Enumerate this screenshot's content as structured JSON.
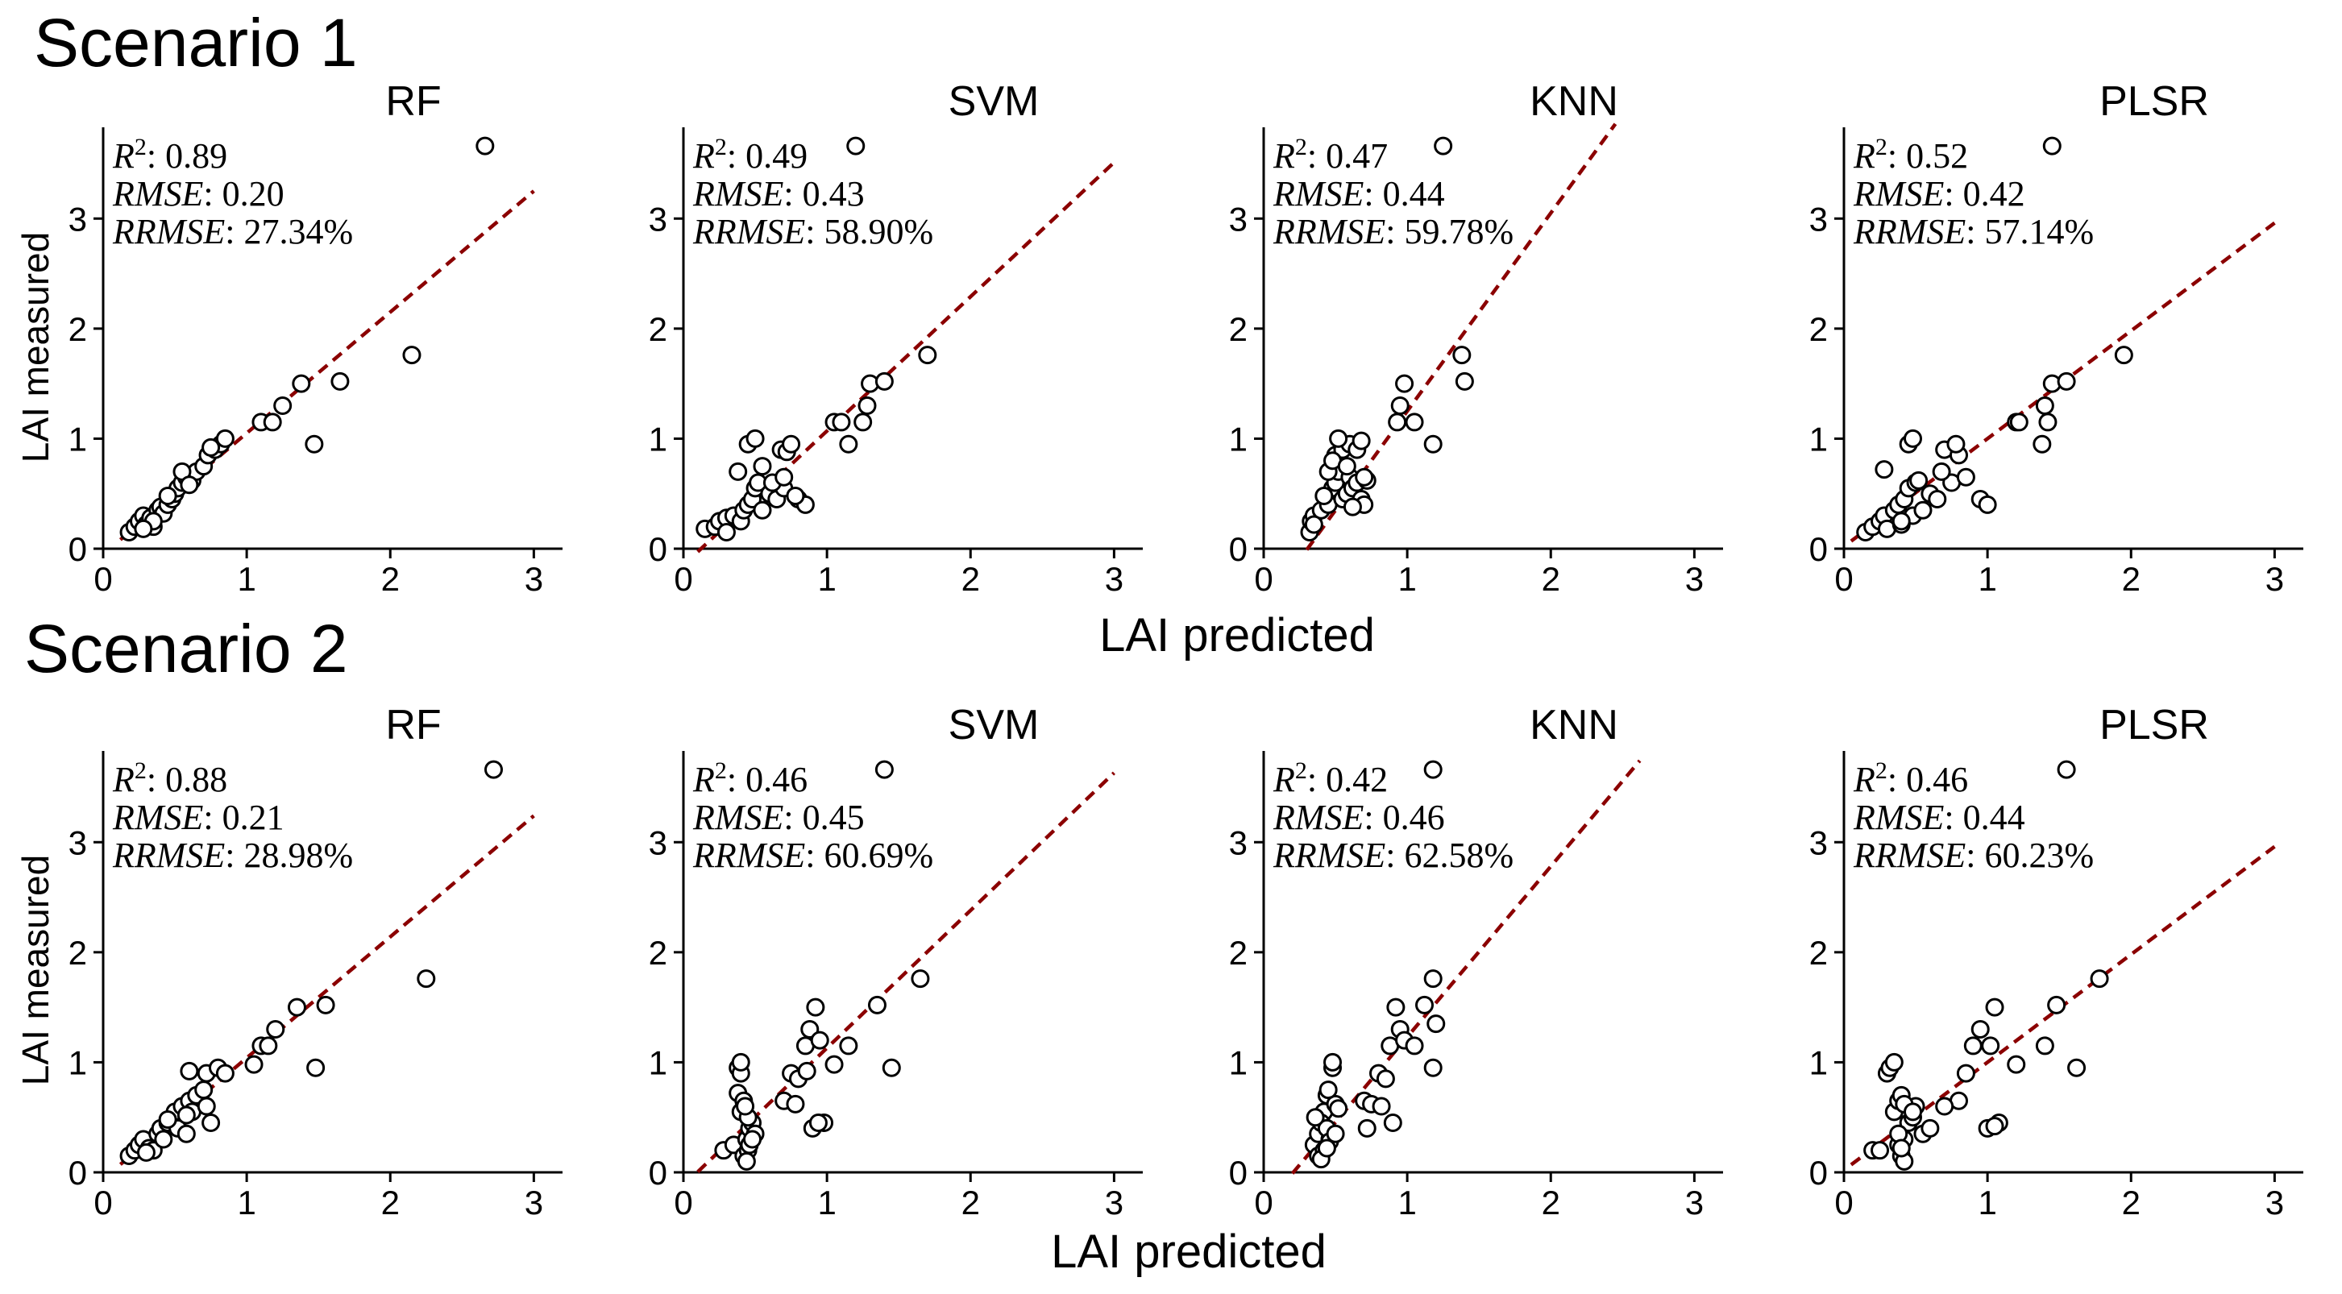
{
  "scenarios": [
    {
      "title": "Scenario 1",
      "xlabel": "LAI predicted",
      "ylabel": "LAI measured",
      "panels": [
        {
          "title": "RF",
          "stats": {
            "r2": "0.89",
            "rmse": "0.20",
            "rrmse": "27.34%"
          }
        },
        {
          "title": "SVM",
          "stats": {
            "r2": "0.49",
            "rmse": "0.43",
            "rrmse": "58.90%"
          }
        },
        {
          "title": "KNN",
          "stats": {
            "r2": "0.47",
            "rmse": "0.44",
            "rrmse": "59.78%"
          }
        },
        {
          "title": "PLSR",
          "stats": {
            "r2": "0.52",
            "rmse": "0.42",
            "rrmse": "57.14%"
          }
        }
      ]
    },
    {
      "title": "Scenario 2",
      "xlabel": "LAI predicted",
      "ylabel": "LAI measured",
      "panels": [
        {
          "title": "RF",
          "stats": {
            "r2": "0.88",
            "rmse": "0.21",
            "rrmse": "28.98%"
          }
        },
        {
          "title": "SVM",
          "stats": {
            "r2": "0.46",
            "rmse": "0.45",
            "rrmse": "60.69%"
          }
        },
        {
          "title": "KNN",
          "stats": {
            "r2": "0.42",
            "rmse": "0.46",
            "rrmse": "62.58%"
          }
        },
        {
          "title": "PLSR",
          "stats": {
            "r2": "0.46",
            "rmse": "0.44",
            "rrmse": "60.23%"
          }
        }
      ]
    }
  ],
  "stat_labels": {
    "r2": "R",
    "r2_exp": "2",
    "rmse": "RMSE",
    "rrmse": "RRMSE"
  },
  "colors": {
    "fit_line": "#8b0000",
    "marker_edge": "#000000",
    "marker_face": "#ffffff"
  },
  "chart_data": [
    {
      "type": "scatter",
      "title": "RF",
      "scenario": "Scenario 1",
      "xlabel": "",
      "ylabel": "LAI measured",
      "xlim": [
        0,
        3.2
      ],
      "ylim": [
        0,
        3.8
      ],
      "xticks": [
        0,
        1,
        2,
        3
      ],
      "yticks": [
        0,
        1,
        2,
        3
      ],
      "fit": {
        "slope": 1.1,
        "intercept": -0.05,
        "x_range": [
          0.12,
          3.0
        ]
      },
      "x": [
        0.18,
        0.22,
        0.25,
        0.28,
        0.3,
        0.33,
        0.35,
        0.38,
        0.4,
        0.42,
        0.45,
        0.48,
        0.5,
        0.52,
        0.55,
        0.58,
        0.62,
        0.65,
        0.7,
        0.73,
        0.78,
        0.82,
        0.85,
        0.35,
        0.45,
        1.1,
        1.18,
        1.25,
        1.38,
        1.47,
        1.65,
        2.15,
        2.66,
        0.55,
        0.28,
        0.6,
        0.75
      ],
      "y": [
        0.15,
        0.2,
        0.25,
        0.3,
        0.22,
        0.28,
        0.2,
        0.35,
        0.38,
        0.32,
        0.4,
        0.45,
        0.5,
        0.55,
        0.6,
        0.65,
        0.62,
        0.7,
        0.75,
        0.85,
        0.9,
        0.95,
        1.0,
        0.25,
        0.48,
        1.15,
        1.15,
        1.3,
        1.5,
        0.95,
        1.52,
        1.76,
        3.66,
        0.7,
        0.18,
        0.58,
        0.92
      ]
    },
    {
      "type": "scatter",
      "title": "SVM",
      "scenario": "Scenario 1",
      "xlabel": "LAI predicted",
      "ylabel": "",
      "xlim": [
        0,
        3.2
      ],
      "ylim": [
        0,
        3.8
      ],
      "xticks": [
        0,
        1,
        2,
        3
      ],
      "yticks": [
        0,
        1,
        2,
        3
      ],
      "fit": {
        "slope": 1.22,
        "intercept": -0.15,
        "x_range": [
          0.1,
          3.0
        ]
      },
      "x": [
        0.15,
        0.22,
        0.25,
        0.3,
        0.35,
        0.4,
        0.42,
        0.45,
        0.48,
        0.5,
        0.52,
        0.55,
        0.6,
        0.65,
        0.68,
        0.7,
        0.72,
        0.75,
        0.8,
        0.85,
        0.38,
        0.45,
        0.5,
        0.62,
        0.7,
        1.05,
        1.1,
        1.15,
        1.25,
        1.28,
        1.3,
        1.4,
        1.7,
        1.2,
        0.3,
        0.55,
        0.78
      ],
      "y": [
        0.18,
        0.2,
        0.25,
        0.28,
        0.3,
        0.25,
        0.35,
        0.4,
        0.45,
        0.55,
        0.6,
        0.35,
        0.5,
        0.45,
        0.9,
        0.55,
        0.88,
        0.95,
        0.45,
        0.4,
        0.7,
        0.95,
        1.0,
        0.6,
        0.65,
        1.15,
        1.15,
        0.95,
        1.15,
        1.3,
        1.5,
        1.52,
        1.76,
        3.66,
        0.15,
        0.75,
        0.48
      ]
    },
    {
      "type": "scatter",
      "title": "KNN",
      "scenario": "Scenario 1",
      "xlabel": "",
      "ylabel": "",
      "xlim": [
        0,
        3.2
      ],
      "ylim": [
        0,
        3.8
      ],
      "xticks": [
        0,
        1,
        2,
        3
      ],
      "yticks": [
        0,
        1,
        2,
        3
      ],
      "fit": {
        "slope": 1.8,
        "intercept": -0.55,
        "x_range": [
          0.3,
          2.45
        ]
      },
      "x": [
        0.32,
        0.33,
        0.35,
        0.4,
        0.45,
        0.48,
        0.5,
        0.52,
        0.55,
        0.58,
        0.6,
        0.62,
        0.65,
        0.68,
        0.7,
        0.72,
        0.45,
        0.5,
        0.55,
        0.6,
        0.65,
        0.68,
        0.48,
        0.52,
        0.58,
        0.93,
        0.95,
        0.98,
        1.05,
        1.18,
        1.38,
        1.4,
        1.25,
        0.35,
        0.42,
        0.62,
        0.7
      ],
      "y": [
        0.15,
        0.25,
        0.3,
        0.35,
        0.4,
        0.55,
        0.6,
        0.7,
        0.45,
        0.5,
        0.65,
        0.55,
        0.6,
        0.45,
        0.4,
        0.62,
        0.7,
        0.85,
        0.9,
        0.95,
        0.9,
        0.98,
        0.8,
        1.0,
        0.75,
        1.15,
        1.3,
        1.5,
        1.15,
        0.95,
        1.76,
        1.52,
        3.66,
        0.22,
        0.48,
        0.38,
        0.65
      ]
    },
    {
      "type": "scatter",
      "title": "PLSR",
      "scenario": "Scenario 1",
      "xlabel": "",
      "ylabel": "",
      "xlim": [
        0,
        3.2
      ],
      "ylim": [
        0,
        3.8
      ],
      "xticks": [
        0,
        1,
        2,
        3
      ],
      "yticks": [
        0,
        1,
        2,
        3
      ],
      "fit": {
        "slope": 0.98,
        "intercept": 0.02,
        "x_range": [
          0.05,
          3.0
        ]
      },
      "x": [
        0.15,
        0.2,
        0.25,
        0.28,
        0.3,
        0.35,
        0.38,
        0.4,
        0.42,
        0.45,
        0.48,
        0.5,
        0.55,
        0.6,
        0.65,
        0.7,
        0.75,
        0.8,
        0.85,
        0.95,
        1.0,
        0.45,
        0.48,
        0.68,
        0.28,
        1.2,
        1.22,
        1.38,
        1.4,
        1.42,
        1.45,
        1.55,
        1.95,
        1.45,
        0.4,
        0.52,
        0.78
      ],
      "y": [
        0.15,
        0.2,
        0.25,
        0.3,
        0.18,
        0.35,
        0.4,
        0.22,
        0.45,
        0.55,
        0.3,
        0.6,
        0.35,
        0.5,
        0.45,
        0.9,
        0.6,
        0.85,
        0.65,
        0.45,
        0.4,
        0.95,
        1.0,
        0.7,
        0.72,
        1.15,
        1.15,
        0.95,
        1.3,
        1.15,
        1.5,
        1.52,
        1.76,
        3.66,
        0.25,
        0.62,
        0.95
      ]
    },
    {
      "type": "scatter",
      "title": "RF",
      "scenario": "Scenario 2",
      "xlabel": "",
      "ylabel": "LAI measured",
      "xlim": [
        0,
        3.2
      ],
      "ylim": [
        0,
        3.8
      ],
      "xticks": [
        0,
        1,
        2,
        3
      ],
      "yticks": [
        0,
        1,
        2,
        3
      ],
      "fit": {
        "slope": 1.1,
        "intercept": -0.06,
        "x_range": [
          0.12,
          3.0
        ]
      },
      "x": [
        0.18,
        0.22,
        0.25,
        0.28,
        0.32,
        0.35,
        0.38,
        0.4,
        0.42,
        0.45,
        0.48,
        0.5,
        0.52,
        0.55,
        0.58,
        0.6,
        0.62,
        0.65,
        0.7,
        0.72,
        0.75,
        0.8,
        0.85,
        0.6,
        0.72,
        1.05,
        1.1,
        1.15,
        1.2,
        1.35,
        1.48,
        1.55,
        2.25,
        2.72,
        0.3,
        0.45,
        0.58
      ],
      "y": [
        0.15,
        0.2,
        0.25,
        0.3,
        0.22,
        0.2,
        0.35,
        0.4,
        0.3,
        0.45,
        0.5,
        0.55,
        0.4,
        0.6,
        0.35,
        0.65,
        0.55,
        0.7,
        0.75,
        0.9,
        0.45,
        0.95,
        0.9,
        0.92,
        0.6,
        0.98,
        1.15,
        1.15,
        1.3,
        1.5,
        0.95,
        1.52,
        1.76,
        3.66,
        0.18,
        0.48,
        0.52
      ]
    },
    {
      "type": "scatter",
      "title": "SVM",
      "scenario": "Scenario 2",
      "xlabel": "",
      "ylabel": "",
      "xlim": [
        0,
        3.2
      ],
      "ylim": [
        0,
        3.8
      ],
      "xticks": [
        0,
        1,
        2,
        3
      ],
      "yticks": [
        0,
        1,
        2,
        3
      ],
      "fit": {
        "slope": 1.25,
        "intercept": -0.12,
        "x_range": [
          0.1,
          3.0
        ]
      },
      "x": [
        0.28,
        0.35,
        0.38,
        0.4,
        0.42,
        0.44,
        0.45,
        0.46,
        0.48,
        0.5,
        0.38,
        0.4,
        0.42,
        0.45,
        0.7,
        0.75,
        0.8,
        0.85,
        0.88,
        0.9,
        0.92,
        0.95,
        0.98,
        1.05,
        1.15,
        1.35,
        1.45,
        1.65,
        1.4,
        0.4,
        0.43,
        0.46,
        0.78,
        0.86,
        0.94,
        0.44,
        0.48
      ],
      "y": [
        0.2,
        0.25,
        0.95,
        0.9,
        0.15,
        0.3,
        0.2,
        0.4,
        0.45,
        0.35,
        0.72,
        0.55,
        0.65,
        0.5,
        0.65,
        0.9,
        0.85,
        1.15,
        1.3,
        0.4,
        1.5,
        1.2,
        0.45,
        0.98,
        1.15,
        1.52,
        0.95,
        1.76,
        3.66,
        1.0,
        0.6,
        0.25,
        0.62,
        0.92,
        0.45,
        0.1,
        0.3
      ]
    },
    {
      "type": "scatter",
      "title": "KNN",
      "scenario": "Scenario 2",
      "xlabel": "",
      "ylabel": "",
      "xlim": [
        0,
        3.2
      ],
      "ylim": [
        0,
        3.8
      ],
      "xticks": [
        0,
        1,
        2,
        3
      ],
      "yticks": [
        0,
        1,
        2,
        3
      ],
      "fit": {
        "slope": 1.55,
        "intercept": -0.32,
        "x_range": [
          0.2,
          2.62
        ]
      },
      "x": [
        0.35,
        0.38,
        0.4,
        0.42,
        0.44,
        0.46,
        0.48,
        0.5,
        0.38,
        0.42,
        0.45,
        0.48,
        0.4,
        0.44,
        0.7,
        0.75,
        0.8,
        0.85,
        0.88,
        0.9,
        0.92,
        0.95,
        0.98,
        1.05,
        1.12,
        1.18,
        1.18,
        1.2,
        1.18,
        0.36,
        0.46,
        0.52,
        0.72,
        0.82,
        0.4,
        0.44,
        0.5
      ],
      "y": [
        0.25,
        0.35,
        0.5,
        0.55,
        0.7,
        0.3,
        0.95,
        0.62,
        0.15,
        0.2,
        0.75,
        1.0,
        0.45,
        0.4,
        0.65,
        0.62,
        0.9,
        0.85,
        1.15,
        0.45,
        1.5,
        1.3,
        1.2,
        1.15,
        1.52,
        1.76,
        0.95,
        1.35,
        3.66,
        0.5,
        0.28,
        0.58,
        0.4,
        0.6,
        0.12,
        0.22,
        0.35
      ]
    },
    {
      "type": "scatter",
      "title": "PLSR",
      "scenario": "Scenario 2",
      "xlabel": "",
      "ylabel": "",
      "xlim": [
        0,
        3.2
      ],
      "ylim": [
        0,
        3.8
      ],
      "xticks": [
        0,
        1,
        2,
        3
      ],
      "yticks": [
        0,
        1,
        2,
        3
      ],
      "fit": {
        "slope": 0.98,
        "intercept": 0.02,
        "x_range": [
          0.05,
          3.0
        ]
      },
      "x": [
        0.2,
        0.25,
        0.3,
        0.32,
        0.35,
        0.38,
        0.4,
        0.42,
        0.45,
        0.48,
        0.5,
        0.55,
        0.6,
        0.35,
        0.38,
        0.4,
        0.42,
        0.8,
        0.85,
        0.9,
        0.95,
        1.0,
        1.05,
        1.08,
        1.2,
        1.4,
        1.48,
        1.62,
        1.78,
        1.55,
        0.38,
        0.42,
        0.7,
        1.02,
        1.05,
        0.4,
        0.48
      ],
      "y": [
        0.2,
        0.2,
        0.9,
        0.95,
        1.0,
        0.25,
        0.15,
        0.3,
        0.45,
        0.5,
        0.6,
        0.35,
        0.4,
        0.55,
        0.65,
        0.7,
        0.1,
        0.65,
        0.9,
        1.15,
        1.3,
        0.4,
        1.5,
        0.45,
        0.98,
        1.15,
        1.52,
        0.95,
        1.76,
        3.66,
        0.35,
        0.62,
        0.6,
        1.15,
        0.42,
        0.22,
        0.55
      ]
    }
  ]
}
